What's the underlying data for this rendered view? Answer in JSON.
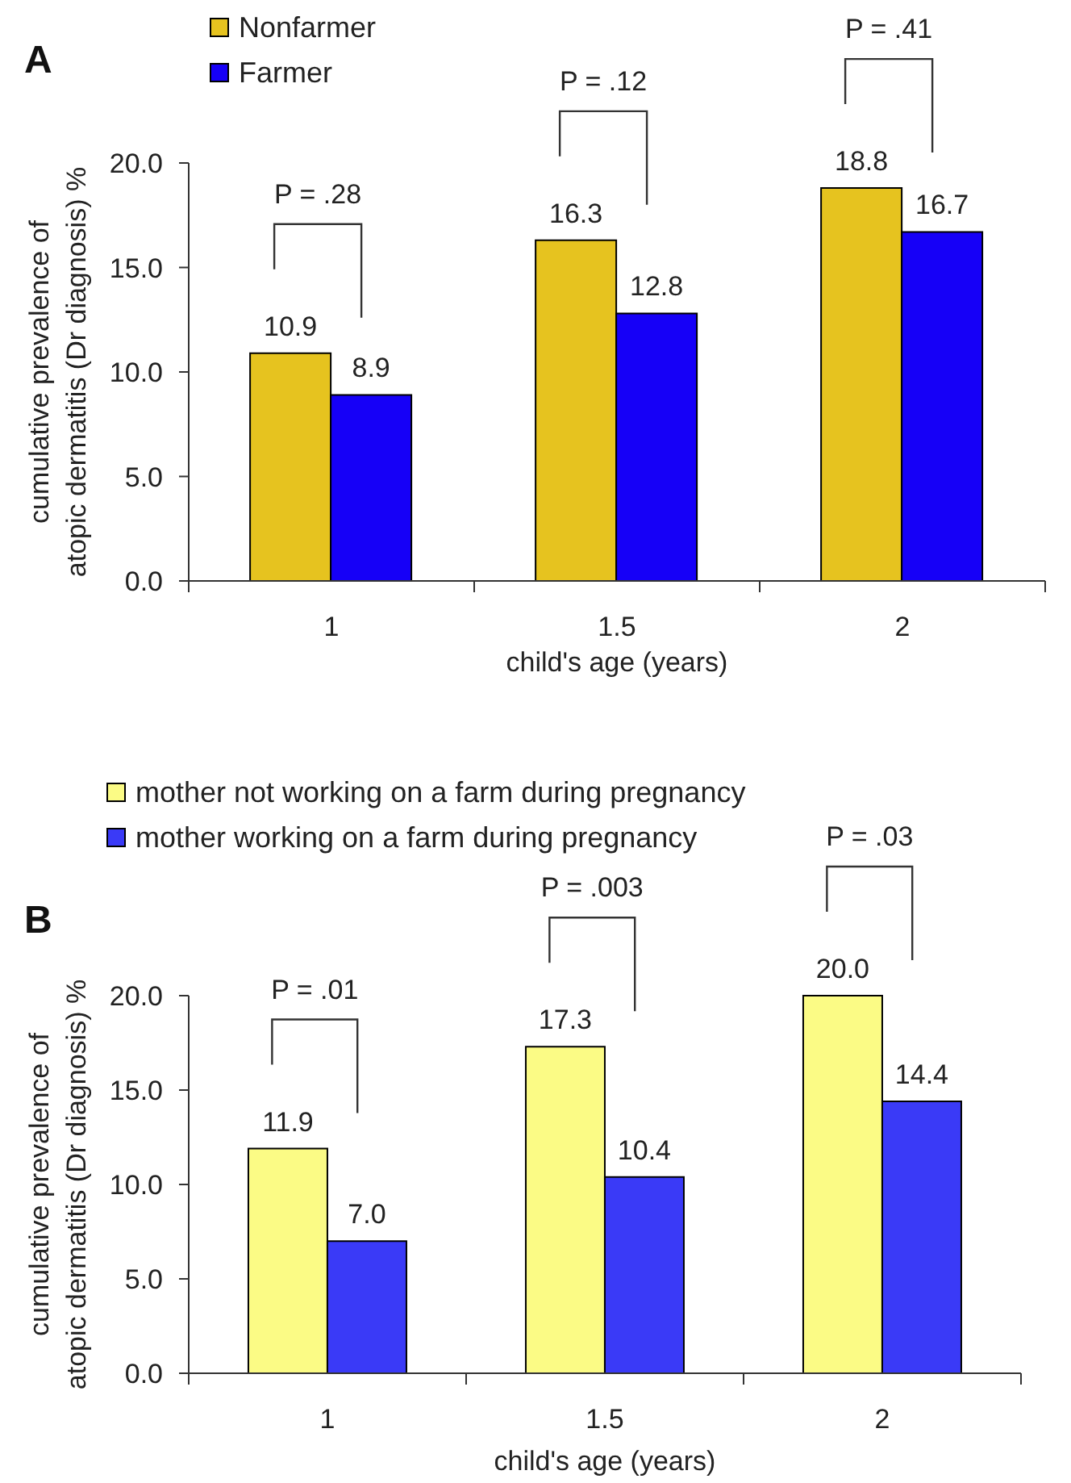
{
  "chart_data": [
    {
      "type": "bar",
      "title": "A",
      "categories": [
        "1",
        "1.5",
        "2"
      ],
      "xlabel": "child's age (years)",
      "ylabel": "cumulative prevalence of atopic dermatitis (Dr diagnosis) %",
      "series": [
        {
          "name": "Nonfarmer",
          "color": "#e6c31f",
          "values": [
            10.9,
            16.3,
            18.8
          ],
          "value_labels": [
            "10.9",
            "16.3",
            "18.8"
          ]
        },
        {
          "name": "Farmer",
          "color": "#1600f7",
          "values": [
            8.9,
            12.8,
            16.7
          ],
          "value_labels": [
            "8.9",
            "12.8",
            "16.7"
          ]
        }
      ],
      "ylim": [
        0,
        20
      ],
      "yticks": [
        {
          "value": 0,
          "label": "0.0"
        },
        {
          "value": 5,
          "label": "5.0"
        },
        {
          "value": 10,
          "label": "10.0"
        },
        {
          "value": 15,
          "label": "15.0"
        },
        {
          "value": 20,
          "label": "20.0"
        }
      ],
      "legend": "top left",
      "annotations": [
        "P = .28",
        "P = .12",
        "P = .41"
      ]
    },
    {
      "type": "bar",
      "title": "B",
      "categories": [
        "1",
        "1.5",
        "2"
      ],
      "xlabel": "child's age (years)",
      "ylabel": "cumulative prevalence of atopic dermatitis (Dr diagnosis) %",
      "series": [
        {
          "name": "mother not working on a farm during pregnancy",
          "color": "#fbfb85",
          "values": [
            11.9,
            17.3,
            20.0
          ],
          "value_labels": [
            "11.9",
            "17.3",
            "20.0"
          ]
        },
        {
          "name": "mother working on a farm during pregnancy",
          "color": "#3a3af7",
          "values": [
            7.0,
            10.4,
            14.4
          ],
          "value_labels": [
            "7.0",
            "10.4",
            "14.4"
          ]
        }
      ],
      "ylim": [
        0,
        20
      ],
      "yticks": [
        {
          "value": 0,
          "label": "0.0"
        },
        {
          "value": 5,
          "label": "5.0"
        },
        {
          "value": 10,
          "label": "10.0"
        },
        {
          "value": 15,
          "label": "15.0"
        },
        {
          "value": 20,
          "label": "20.0"
        }
      ],
      "legend": "top left",
      "annotations": [
        "P = .01",
        "P = .003",
        "P = .03"
      ]
    }
  ]
}
